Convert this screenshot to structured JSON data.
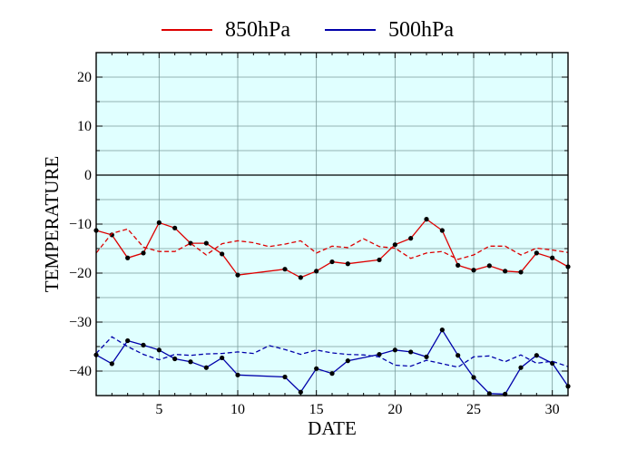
{
  "chart_data": {
    "type": "line",
    "xlabel": "DATE",
    "ylabel": "TEMPERATURE",
    "xlim": [
      1,
      31
    ],
    "ylim": [
      -45,
      25
    ],
    "xticks": [
      5,
      10,
      15,
      20,
      25,
      30
    ],
    "yticks": [
      20,
      10,
      0,
      -10,
      -20,
      -30,
      -40
    ],
    "grid": true,
    "legend_position": "top-center",
    "background_color": "#e0ffff",
    "series": [
      {
        "name": "850hPa",
        "color": "#dd0000",
        "style": "solid-with-markers",
        "x": [
          1,
          2,
          3,
          4,
          5,
          6,
          7,
          8,
          9,
          10,
          13,
          14,
          15,
          16,
          17,
          19,
          20,
          21,
          22,
          23,
          24,
          25,
          26,
          27,
          28,
          29,
          30,
          31
        ],
        "values": [
          -11.3,
          -12.2,
          -16.9,
          -15.9,
          -9.7,
          -10.8,
          -13.9,
          -13.9,
          -16.1,
          -20.4,
          -19.2,
          -20.9,
          -19.6,
          -17.7,
          -18.1,
          -17.3,
          -14.2,
          -12.9,
          -9.0,
          -11.3,
          -18.4,
          -19.4,
          -18.5,
          -19.6,
          -19.8,
          -15.9,
          -16.9,
          -18.7
        ]
      },
      {
        "name": "850hPa normal",
        "color": "#dd0000",
        "style": "dashed",
        "x": [
          1,
          2,
          3,
          4,
          5,
          6,
          7,
          8,
          9,
          10,
          11,
          12,
          13,
          14,
          15,
          16,
          17,
          18,
          19,
          20,
          21,
          22,
          23,
          24,
          25,
          26,
          27,
          28,
          29,
          30,
          31
        ],
        "values": [
          -15.9,
          -11.9,
          -11.0,
          -14.7,
          -15.6,
          -15.6,
          -13.9,
          -16.3,
          -14.0,
          -13.4,
          -13.8,
          -14.6,
          -14.1,
          -13.4,
          -15.9,
          -14.5,
          -14.8,
          -13.0,
          -14.6,
          -14.9,
          -17.0,
          -15.9,
          -15.6,
          -17.2,
          -16.3,
          -14.5,
          -14.5,
          -16.3,
          -14.9,
          -15.3,
          -15.8
        ]
      },
      {
        "name": "500hPa",
        "color": "#0000aa",
        "style": "solid-with-markers",
        "x": [
          1,
          2,
          3,
          4,
          5,
          6,
          7,
          8,
          9,
          10,
          13,
          14,
          15,
          16,
          17,
          19,
          20,
          21,
          22,
          23,
          24,
          25,
          26,
          27,
          28,
          29,
          30,
          31
        ],
        "values": [
          -36.7,
          -38.5,
          -33.8,
          -34.7,
          -35.7,
          -37.5,
          -38.1,
          -39.3,
          -37.3,
          -40.8,
          -41.2,
          -44.3,
          -39.5,
          -40.5,
          -37.9,
          -36.6,
          -35.7,
          -36.1,
          -37.1,
          -31.6,
          -36.8,
          -41.3,
          -44.6,
          -44.7,
          -39.3,
          -36.8,
          -38.4,
          -43.1
        ]
      },
      {
        "name": "500hPa normal",
        "color": "#0000aa",
        "style": "dashed",
        "x": [
          1,
          2,
          3,
          4,
          5,
          6,
          7,
          8,
          9,
          10,
          11,
          12,
          13,
          14,
          15,
          16,
          17,
          18,
          19,
          20,
          21,
          22,
          23,
          24,
          25,
          26,
          27,
          28,
          29,
          30,
          31
        ],
        "values": [
          -36.4,
          -33.0,
          -35.0,
          -36.6,
          -37.7,
          -36.6,
          -36.8,
          -36.5,
          -36.4,
          -36.1,
          -36.4,
          -34.8,
          -35.6,
          -36.6,
          -35.7,
          -36.3,
          -36.6,
          -36.7,
          -37.1,
          -38.8,
          -39.0,
          -37.8,
          -38.5,
          -39.2,
          -37.1,
          -36.9,
          -38.1,
          -36.7,
          -38.4,
          -38.0,
          -39.1
        ]
      }
    ]
  },
  "legend": [
    {
      "label": "850hPa",
      "color": "#dd0000"
    },
    {
      "label": "500hPa",
      "color": "#0000aa"
    }
  ]
}
